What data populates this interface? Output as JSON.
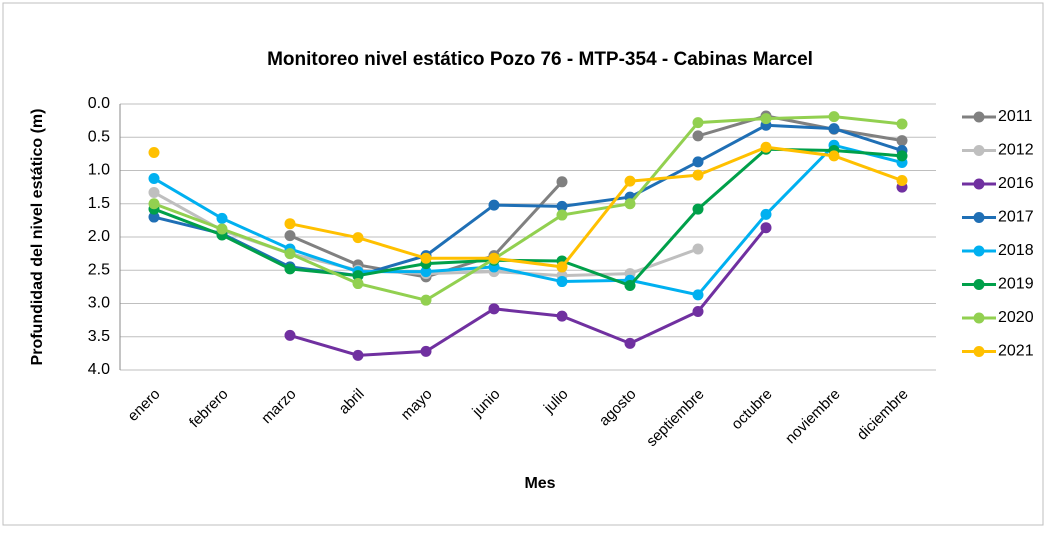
{
  "chart_data": {
    "type": "line",
    "title": "Monitoreo nivel estático Pozo 76 - MTP-354 - Cabinas Marcel",
    "x_label": "Mes",
    "y_label": "Profundidad del nivel estático (m)",
    "categories": [
      "enero",
      "febrero",
      "marzo",
      "abril",
      "mayo",
      "junio",
      "julio",
      "agosto",
      "septiembre",
      "octubre",
      "noviembre",
      "diciembre"
    ],
    "series": [
      {
        "name": "2011",
        "color": "#808080",
        "values": [
          null,
          null,
          1.98,
          2.42,
          2.6,
          2.28,
          1.17,
          null,
          0.48,
          0.18,
          0.38,
          0.55
        ]
      },
      {
        "name": "2012",
        "color": "#bfbfbf",
        "values": [
          1.33,
          1.9,
          2.25,
          2.5,
          2.55,
          2.52,
          2.58,
          2.55,
          2.18,
          null,
          null,
          null
        ]
      },
      {
        "name": "2016",
        "color": "#7030a0",
        "values": [
          null,
          null,
          3.48,
          3.78,
          3.72,
          3.08,
          3.19,
          3.6,
          3.12,
          1.86,
          null,
          1.25
        ]
      },
      {
        "name": "2017",
        "color": "#1f6fb5",
        "values": [
          1.7,
          1.95,
          2.45,
          2.58,
          2.28,
          1.52,
          1.54,
          1.4,
          0.87,
          0.32,
          0.37,
          0.7
        ]
      },
      {
        "name": "2018",
        "color": "#00b0f0",
        "values": [
          1.12,
          1.72,
          2.18,
          2.52,
          2.52,
          2.45,
          2.67,
          2.65,
          2.87,
          1.66,
          0.62,
          0.88
        ]
      },
      {
        "name": "2019",
        "color": "#00a04a",
        "values": [
          1.58,
          1.97,
          2.48,
          2.58,
          2.4,
          2.35,
          2.36,
          2.73,
          1.58,
          0.68,
          0.7,
          0.78
        ]
      },
      {
        "name": "2020",
        "color": "#92d050",
        "values": [
          1.5,
          1.88,
          2.25,
          2.7,
          2.95,
          2.33,
          1.67,
          1.5,
          0.28,
          0.22,
          0.19,
          0.3
        ]
      },
      {
        "name": "2021",
        "color": "#ffc000",
        "values": [
          0.73,
          null,
          1.8,
          2.01,
          2.32,
          2.32,
          2.45,
          1.16,
          1.07,
          0.65,
          0.78,
          1.15
        ]
      }
    ],
    "ylim": [
      0,
      4
    ],
    "y_inverted": true,
    "yticks": [
      {
        "value": 0,
        "label": "0.0"
      },
      0.5,
      {
        "value": 1,
        "label": "1.0"
      },
      1.5,
      {
        "value": 2,
        "label": "2.0"
      },
      2.5,
      {
        "value": 3,
        "label": "3.0"
      },
      3.5,
      {
        "value": 4,
        "label": "4.0"
      }
    ],
    "grid": true,
    "legend": "right"
  }
}
